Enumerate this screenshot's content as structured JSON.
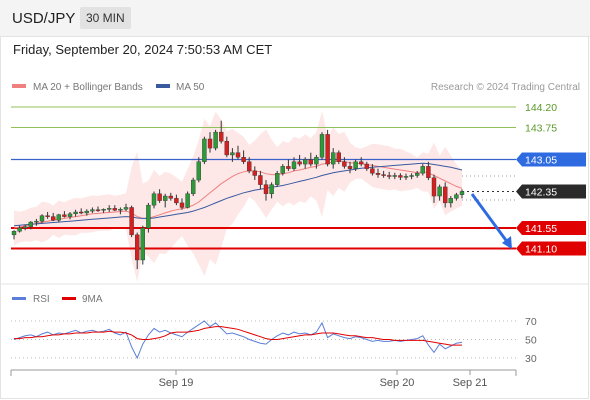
{
  "header": {
    "symbol": "USD/JPY",
    "timeframe": "30 MIN",
    "datetime": "Friday, September 20, 2024 7:50:53 AM CET"
  },
  "legend": {
    "ma20_label": "MA 20 + Bollinger Bands",
    "ma50_label": "MA 50",
    "credit": "Research © 2024 Trading Central",
    "rsi_label": "RSI",
    "rsi_ma_label": "9MA",
    "colors": {
      "ma20": "#f08080",
      "ma50": "#3a5aa0",
      "rsi": "#5b7fd8",
      "rsi_ma": "#e00000"
    }
  },
  "chart_data": {
    "type": "candlestick",
    "x_labels": [
      "Sep 19",
      "Sep 20",
      "Sep 21"
    ],
    "current_price": "142.35",
    "levels": [
      {
        "value": "144.20",
        "kind": "resistance"
      },
      {
        "value": "143.75",
        "kind": "resistance"
      },
      {
        "value": "143.05",
        "kind": "pivot"
      },
      {
        "value": "142.35",
        "kind": "current"
      },
      {
        "value": "141.55",
        "kind": "support"
      },
      {
        "value": "141.10",
        "kind": "support"
      }
    ],
    "forecast": "down",
    "rsi_levels": [
      "70",
      "50",
      "30"
    ],
    "candles": [
      [
        141.4,
        141.5,
        141.3,
        141.48
      ],
      [
        141.48,
        141.6,
        141.45,
        141.55
      ],
      [
        141.55,
        141.62,
        141.5,
        141.58
      ],
      [
        141.58,
        141.7,
        141.52,
        141.68
      ],
      [
        141.68,
        141.75,
        141.6,
        141.7
      ],
      [
        141.7,
        141.85,
        141.65,
        141.82
      ],
      [
        141.82,
        141.9,
        141.75,
        141.8
      ],
      [
        141.8,
        141.88,
        141.7,
        141.72
      ],
      [
        141.72,
        141.86,
        141.68,
        141.84
      ],
      [
        141.84,
        141.92,
        141.78,
        141.8
      ],
      [
        141.8,
        141.9,
        141.74,
        141.86
      ],
      [
        141.86,
        141.95,
        141.8,
        141.9
      ],
      [
        141.9,
        141.98,
        141.85,
        141.88
      ],
      [
        141.88,
        141.96,
        141.82,
        141.92
      ],
      [
        141.92,
        142.0,
        141.88,
        141.95
      ],
      [
        141.95,
        142.02,
        141.9,
        141.94
      ],
      [
        141.94,
        141.98,
        141.88,
        141.96
      ],
      [
        141.96,
        142.05,
        141.9,
        141.98
      ],
      [
        141.98,
        142.05,
        141.92,
        141.94
      ],
      [
        141.94,
        142.0,
        141.85,
        141.96
      ],
      [
        141.96,
        142.08,
        141.92,
        142.0
      ],
      [
        142.0,
        142.04,
        141.35,
        141.4
      ],
      [
        141.4,
        141.45,
        140.65,
        140.85
      ],
      [
        140.85,
        141.6,
        140.75,
        141.55
      ],
      [
        141.55,
        142.1,
        141.45,
        142.05
      ],
      [
        142.05,
        142.35,
        141.98,
        142.3
      ],
      [
        142.3,
        142.4,
        142.1,
        142.15
      ],
      [
        142.15,
        142.3,
        142.0,
        142.25
      ],
      [
        142.25,
        142.32,
        142.15,
        142.2
      ],
      [
        142.2,
        142.28,
        142.05,
        142.1
      ],
      [
        142.1,
        142.2,
        141.95,
        142.0
      ],
      [
        142.0,
        142.35,
        141.98,
        142.3
      ],
      [
        142.3,
        142.65,
        142.25,
        142.6
      ],
      [
        142.6,
        143.1,
        142.55,
        143.0
      ],
      [
        143.0,
        143.55,
        142.95,
        143.5
      ],
      [
        143.5,
        143.65,
        143.2,
        143.3
      ],
      [
        143.3,
        143.7,
        143.25,
        143.65
      ],
      [
        143.65,
        143.9,
        143.4,
        143.45
      ],
      [
        143.45,
        143.55,
        143.1,
        143.15
      ],
      [
        143.15,
        143.3,
        143.0,
        143.2
      ],
      [
        143.2,
        143.35,
        143.05,
        143.1
      ],
      [
        143.1,
        143.25,
        142.95,
        143.0
      ],
      [
        143.0,
        143.1,
        142.75,
        142.8
      ],
      [
        142.8,
        142.9,
        142.6,
        142.7
      ],
      [
        142.7,
        142.8,
        142.4,
        142.5
      ],
      [
        142.5,
        142.6,
        142.15,
        142.3
      ],
      [
        142.3,
        142.55,
        142.2,
        142.5
      ],
      [
        142.5,
        142.8,
        142.45,
        142.75
      ],
      [
        142.75,
        142.95,
        142.7,
        142.9
      ],
      [
        142.9,
        143.05,
        142.8,
        142.85
      ],
      [
        142.85,
        143.1,
        142.8,
        143.0
      ],
      [
        143.0,
        143.15,
        142.9,
        142.95
      ],
      [
        142.95,
        143.1,
        142.85,
        143.05
      ],
      [
        143.05,
        143.2,
        142.9,
        142.95
      ],
      [
        142.95,
        143.15,
        142.85,
        143.1
      ],
      [
        143.1,
        143.65,
        143.05,
        143.6
      ],
      [
        143.6,
        143.7,
        142.9,
        142.95
      ],
      [
        142.95,
        143.3,
        142.85,
        143.2
      ],
      [
        143.2,
        143.25,
        142.95,
        143.0
      ],
      [
        143.0,
        143.1,
        142.85,
        142.9
      ],
      [
        142.9,
        143.0,
        142.75,
        142.85
      ],
      [
        142.85,
        143.05,
        142.8,
        143.0
      ],
      [
        143.0,
        143.1,
        142.9,
        142.95
      ],
      [
        142.95,
        143.0,
        142.8,
        142.85
      ],
      [
        142.85,
        142.95,
        142.7,
        142.75
      ],
      [
        142.75,
        142.85,
        142.65,
        142.72
      ],
      [
        142.72,
        142.8,
        142.65,
        142.7
      ],
      [
        142.7,
        142.78,
        142.62,
        142.68
      ],
      [
        142.68,
        142.76,
        142.62,
        142.7
      ],
      [
        142.7,
        142.75,
        142.6,
        142.66
      ],
      [
        142.66,
        142.74,
        142.6,
        142.68
      ],
      [
        142.68,
        142.75,
        142.62,
        142.7
      ],
      [
        142.7,
        142.8,
        142.65,
        142.75
      ],
      [
        142.75,
        142.95,
        142.7,
        142.9
      ],
      [
        142.9,
        143.0,
        142.6,
        142.65
      ],
      [
        142.65,
        142.72,
        142.1,
        142.25
      ],
      [
        142.25,
        142.5,
        142.15,
        142.45
      ],
      [
        142.45,
        142.55,
        142.0,
        142.1
      ],
      [
        142.1,
        142.25,
        142.0,
        142.2
      ],
      [
        142.2,
        142.32,
        142.15,
        142.28
      ],
      [
        142.28,
        142.4,
        142.2,
        142.35
      ]
    ],
    "rsi": [
      50,
      52,
      54,
      55,
      53,
      56,
      58,
      55,
      57,
      56,
      58,
      60,
      57,
      59,
      60,
      58,
      59,
      61,
      57,
      55,
      58,
      42,
      30,
      45,
      55,
      62,
      58,
      60,
      57,
      55,
      53,
      58,
      62,
      66,
      70,
      64,
      68,
      62,
      56,
      57,
      55,
      53,
      50,
      48,
      46,
      45,
      50,
      54,
      57,
      55,
      58,
      56,
      57,
      55,
      58,
      68,
      52,
      56,
      54,
      52,
      51,
      53,
      52,
      50,
      48,
      49,
      48,
      48,
      49,
      48,
      49,
      50,
      51,
      54,
      44,
      36,
      45,
      40,
      43,
      46,
      47
    ],
    "rsi_ma": [
      51,
      51,
      52,
      52,
      53,
      53,
      54,
      55,
      55,
      56,
      56,
      57,
      57,
      57,
      58,
      58,
      58,
      59,
      58,
      58,
      57,
      55,
      51,
      50,
      50,
      51,
      52,
      54,
      57,
      58,
      58,
      58,
      59,
      60,
      62,
      63,
      64,
      64,
      63,
      62,
      61,
      59,
      57,
      55,
      53,
      51,
      50,
      50,
      51,
      52,
      53,
      54,
      55,
      55,
      56,
      57,
      57,
      57,
      56,
      55,
      54,
      54,
      53,
      52,
      52,
      51,
      50,
      50,
      49,
      49,
      49,
      49,
      49,
      49,
      48,
      47,
      46,
      45,
      44,
      44,
      44
    ],
    "ma20": [
      141.55,
      141.57,
      141.6,
      141.62,
      141.65,
      141.68,
      141.7,
      141.72,
      141.74,
      141.76,
      141.78,
      141.8,
      141.82,
      141.84,
      141.86,
      141.87,
      141.88,
      141.89,
      141.9,
      141.91,
      141.92,
      141.88,
      141.8,
      141.76,
      141.76,
      141.8,
      141.84,
      141.88,
      141.92,
      141.95,
      141.97,
      142.0,
      142.05,
      142.12,
      142.22,
      142.32,
      142.42,
      142.52,
      142.6,
      142.68,
      142.74,
      142.78,
      142.8,
      142.8,
      142.78,
      142.74,
      142.72,
      142.72,
      142.74,
      142.76,
      142.8,
      142.82,
      142.85,
      142.88,
      142.9,
      142.95,
      142.97,
      143.0,
      143.02,
      143.0,
      142.98,
      142.97,
      142.96,
      142.94,
      142.92,
      142.9,
      142.88,
      142.86,
      142.84,
      142.82,
      142.8,
      142.78,
      142.76,
      142.78,
      142.76,
      142.7,
      142.64,
      142.58,
      142.52,
      142.46,
      142.42
    ],
    "ma50": [
      141.6,
      141.61,
      141.62,
      141.63,
      141.64,
      141.65,
      141.66,
      141.67,
      141.68,
      141.69,
      141.7,
      141.71,
      141.72,
      141.73,
      141.74,
      141.75,
      141.76,
      141.77,
      141.78,
      141.79,
      141.8,
      141.79,
      141.77,
      141.76,
      141.76,
      141.77,
      141.79,
      141.81,
      141.83,
      141.85,
      141.87,
      141.89,
      141.92,
      141.96,
      142.0,
      142.05,
      142.1,
      142.15,
      142.2,
      142.24,
      142.28,
      142.32,
      142.35,
      142.38,
      142.4,
      142.42,
      142.44,
      142.46,
      142.48,
      142.51,
      142.54,
      142.57,
      142.6,
      142.63,
      142.66,
      142.7,
      142.73,
      142.76,
      142.78,
      142.8,
      142.82,
      142.84,
      142.86,
      142.87,
      142.88,
      142.89,
      142.9,
      142.91,
      142.92,
      142.93,
      142.94,
      142.95,
      142.96,
      142.97,
      142.96,
      142.94,
      142.92,
      142.9,
      142.88,
      142.85,
      142.82
    ]
  }
}
